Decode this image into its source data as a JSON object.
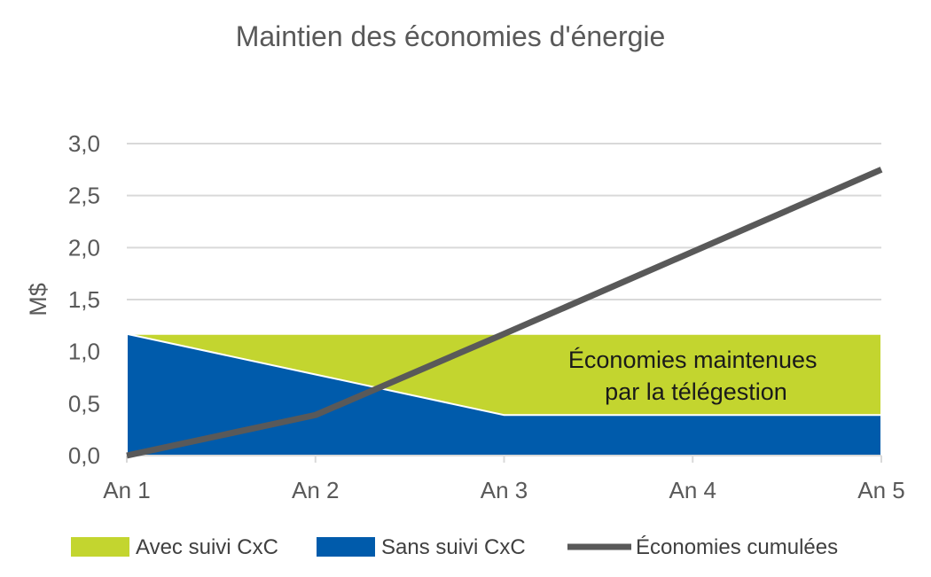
{
  "chart_data": {
    "type": "area",
    "title": "Maintien des économies d'énergie",
    "xlabel": "",
    "ylabel": "M$",
    "categories": [
      "An 1",
      "An 2",
      "An 3",
      "An 4",
      "An 5"
    ],
    "yticks": [
      "0,0",
      "0,5",
      "1,0",
      "1,5",
      "2,0",
      "2,5",
      "3,0"
    ],
    "ylim": [
      0,
      3
    ],
    "grid": true,
    "legend_position": "bottom",
    "series": [
      {
        "name": "Avec suivi CxC",
        "type": "area",
        "color": "#c3d52f",
        "values": [
          1.17,
          1.17,
          1.17,
          1.17,
          1.17
        ]
      },
      {
        "name": "Sans suivi CxC",
        "type": "area",
        "color": "#005bab",
        "values": [
          1.17,
          0.78,
          0.39,
          0.39,
          0.39
        ]
      },
      {
        "name": "Économies cumulées",
        "type": "line",
        "color": "#595959",
        "values": [
          0.0,
          0.39,
          1.17,
          1.96,
          2.75
        ]
      }
    ],
    "annotation": [
      "Économies maintenues",
      "par la télégestion"
    ]
  }
}
